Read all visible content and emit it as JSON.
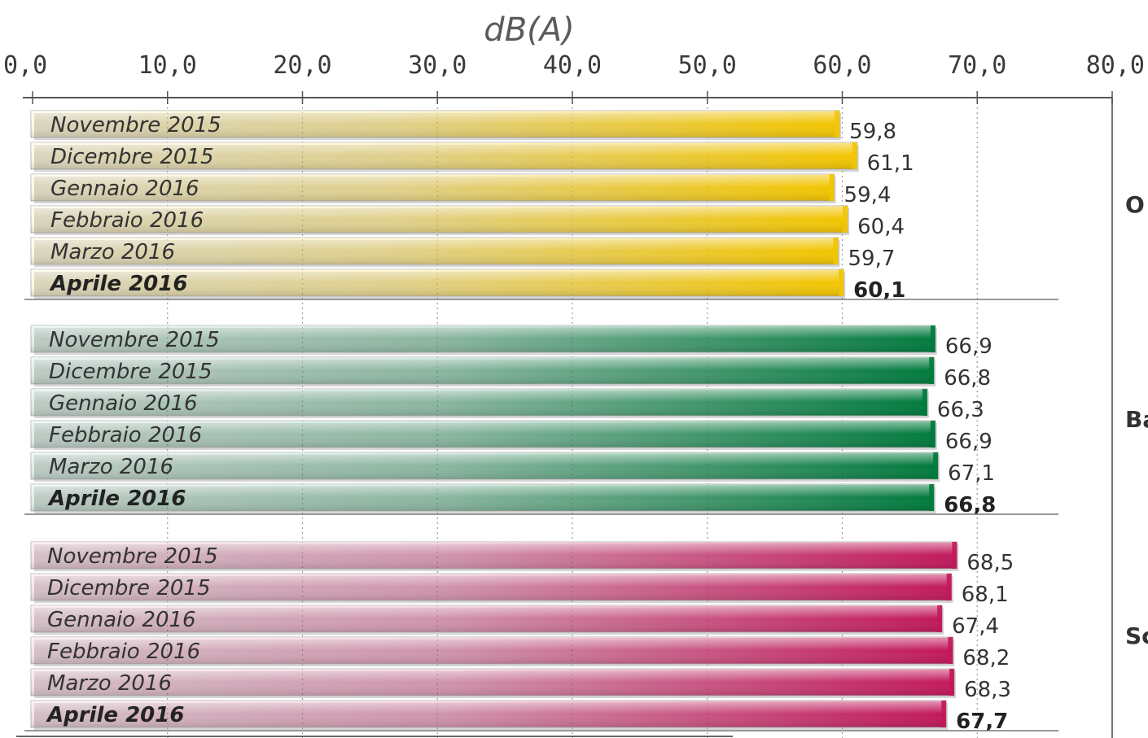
{
  "chart_data": {
    "type": "bar",
    "orientation": "horizontal",
    "unit_label": "dB(A)",
    "xlim": [
      0,
      80
    ],
    "x_ticks": [
      "0,0",
      "10,0",
      "20,0",
      "30,0",
      "40,0",
      "50,0",
      "60,0",
      "70,0",
      "80,0"
    ],
    "grid": true,
    "groups": [
      {
        "label": "O",
        "color": "#f2c500",
        "bars": [
          {
            "label": "Novembre 2015",
            "value": 59.8,
            "value_label": "59,8",
            "bold": false
          },
          {
            "label": "Dicembre 2015",
            "value": 61.1,
            "value_label": "61,1",
            "bold": false
          },
          {
            "label": "Gennaio 2016",
            "value": 59.4,
            "value_label": "59,4",
            "bold": false
          },
          {
            "label": "Febbraio 2016",
            "value": 60.4,
            "value_label": "60,4",
            "bold": false
          },
          {
            "label": "Marzo 2016",
            "value": 59.7,
            "value_label": "59,7",
            "bold": false
          },
          {
            "label": "Aprile 2016",
            "value": 60.1,
            "value_label": "60,1",
            "bold": true
          }
        ]
      },
      {
        "label": "Ba",
        "color": "#007a3d",
        "bars": [
          {
            "label": "Novembre 2015",
            "value": 66.9,
            "value_label": "66,9",
            "bold": false
          },
          {
            "label": "Dicembre 2015",
            "value": 66.8,
            "value_label": "66,8",
            "bold": false
          },
          {
            "label": "Gennaio 2016",
            "value": 66.3,
            "value_label": "66,3",
            "bold": false
          },
          {
            "label": "Febbraio 2016",
            "value": 66.9,
            "value_label": "66,9",
            "bold": false
          },
          {
            "label": "Marzo 2016",
            "value": 67.1,
            "value_label": "67,1",
            "bold": false
          },
          {
            "label": "Aprile 2016",
            "value": 66.8,
            "value_label": "66,8",
            "bold": true
          }
        ]
      },
      {
        "label": "Sc",
        "color": "#c2185b",
        "bars": [
          {
            "label": "Novembre 2015",
            "value": 68.5,
            "value_label": "68,5",
            "bold": false
          },
          {
            "label": "Dicembre 2015",
            "value": 68.1,
            "value_label": "68,1",
            "bold": false
          },
          {
            "label": "Gennaio 2016",
            "value": 67.4,
            "value_label": "67,4",
            "bold": false
          },
          {
            "label": "Febbraio 2016",
            "value": 68.2,
            "value_label": "68,2",
            "bold": false
          },
          {
            "label": "Marzo 2016",
            "value": 68.3,
            "value_label": "68,3",
            "bold": false
          },
          {
            "label": "Aprile 2016",
            "value": 67.7,
            "value_label": "67,7",
            "bold": true
          }
        ]
      }
    ]
  }
}
